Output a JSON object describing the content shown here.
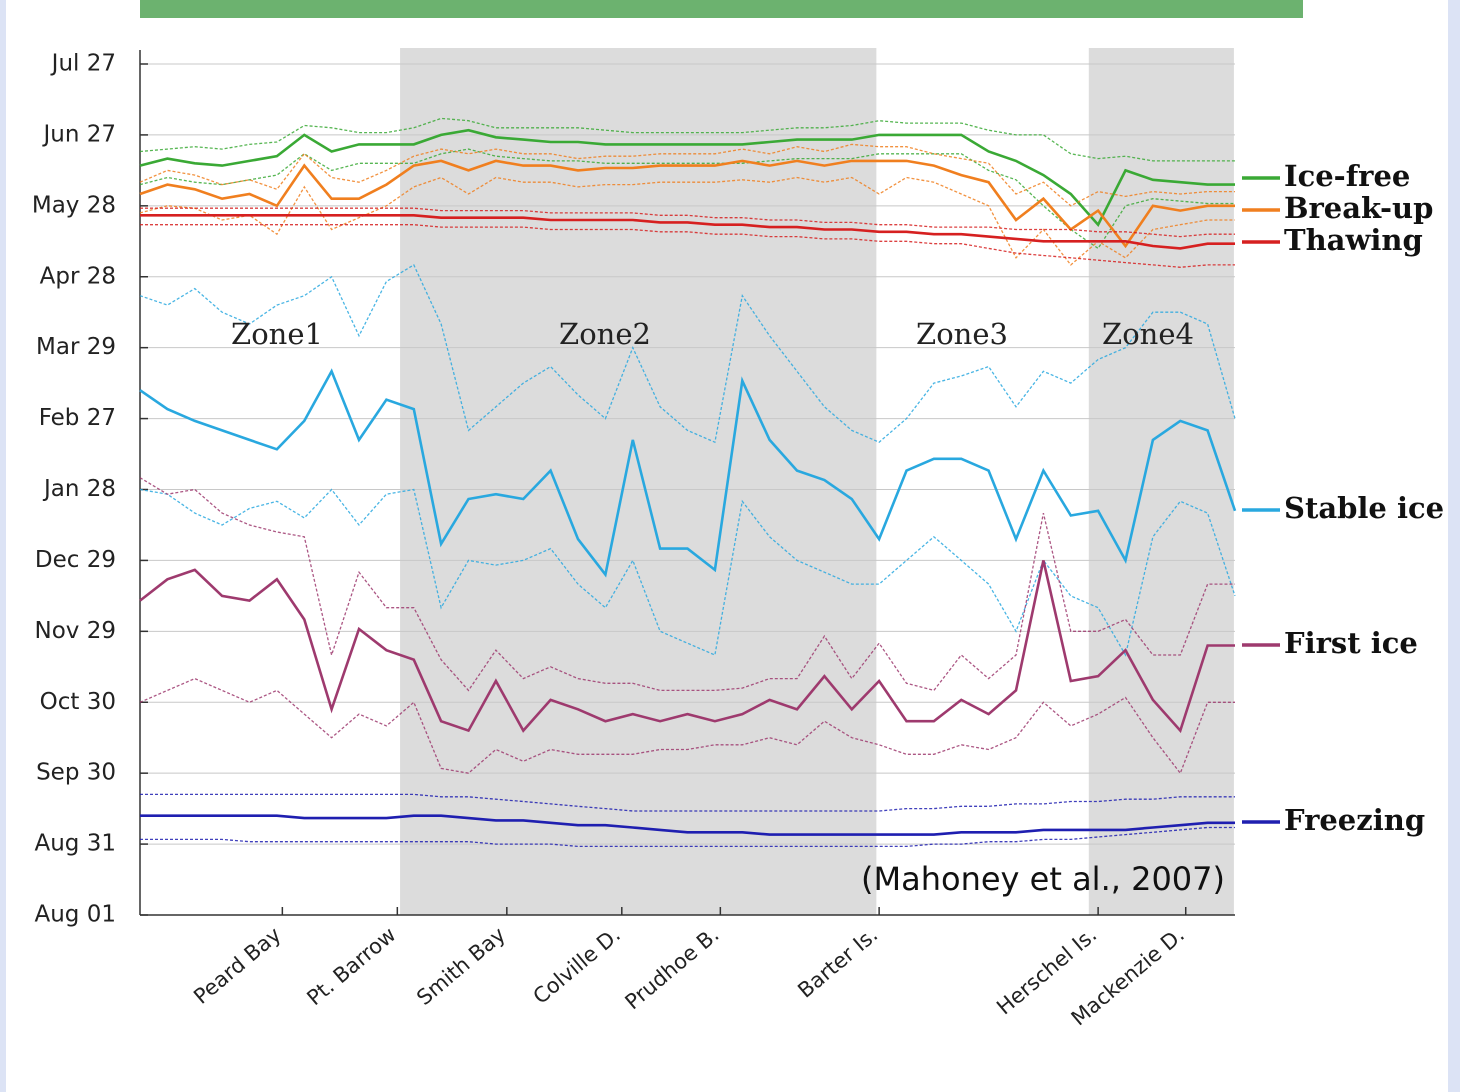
{
  "chart_data": {
    "type": "line",
    "annotation": "(Mahoney et al., 2007)",
    "zones": [
      "Zone1",
      "Zone2",
      "Zone3",
      "Zone4"
    ],
    "shaded": [
      [
        4.75,
        13.45
      ],
      [
        17.33,
        19.98
      ]
    ],
    "x": [
      0,
      0.5,
      1,
      1.5,
      2,
      2.5,
      3,
      3.5,
      4,
      4.5,
      5,
      5.5,
      6,
      6.5,
      7,
      7.5,
      8,
      8.5,
      9,
      9.5,
      10,
      10.5,
      11,
      11.5,
      12,
      12.5,
      13,
      13.5,
      14,
      14.5,
      15,
      15.5,
      16,
      16.5,
      17,
      17.5,
      18,
      18.5,
      19,
      19.5,
      20
    ],
    "xlim": [
      0,
      20
    ],
    "xticks": [
      {
        "value": 2.6,
        "label": "Peard Bay"
      },
      {
        "value": 4.7,
        "label": "Pt. Barrow"
      },
      {
        "value": 6.7,
        "label": "Smith Bay"
      },
      {
        "value": 8.8,
        "label": "Colville D."
      },
      {
        "value": 10.6,
        "label": "Prudhoe B."
      },
      {
        "value": 13.5,
        "label": "Barter Is."
      },
      {
        "value": 17.5,
        "label": "Herschel Is."
      },
      {
        "value": 19.1,
        "label": "Mackenzie D."
      }
    ],
    "ylim": [
      0,
      360
    ],
    "yticks": [
      {
        "value": 0,
        "label": "Aug 01"
      },
      {
        "value": 30,
        "label": "Aug 31"
      },
      {
        "value": 60,
        "label": "Sep 30"
      },
      {
        "value": 90,
        "label": "Oct 30"
      },
      {
        "value": 120,
        "label": "Nov 29"
      },
      {
        "value": 150,
        "label": "Dec 29"
      },
      {
        "value": 180,
        "label": "Jan 28"
      },
      {
        "value": 210,
        "label": "Feb 27"
      },
      {
        "value": 240,
        "label": "Mar 29"
      },
      {
        "value": 270,
        "label": "Apr 28"
      },
      {
        "value": 300,
        "label": "May 28"
      },
      {
        "value": 330,
        "label": "Jun 27"
      },
      {
        "value": 360,
        "label": "Jul 27"
      }
    ],
    "grid": true,
    "series": [
      {
        "name": "Ice-free",
        "color": "#3aa935",
        "values": [
          317,
          320,
          318,
          317,
          319,
          321,
          330,
          323,
          326,
          326,
          326,
          330,
          332,
          329,
          328,
          327,
          327,
          326,
          326,
          326,
          326,
          326,
          326,
          327,
          328,
          328,
          328,
          330,
          330,
          330,
          330,
          323,
          319,
          313,
          305,
          292,
          315,
          311,
          310,
          309,
          309
        ],
        "upper": [
          323,
          324,
          325,
          324,
          326,
          327,
          334,
          333,
          331,
          331,
          333,
          337,
          336,
          333,
          333,
          333,
          333,
          332,
          331,
          331,
          331,
          331,
          331,
          332,
          333,
          333,
          334,
          336,
          335,
          335,
          335,
          332,
          330,
          330,
          322,
          320,
          321,
          319,
          319,
          319,
          319
        ],
        "lower": [
          309,
          312,
          310,
          309,
          311,
          313,
          322,
          315,
          318,
          318,
          318,
          322,
          324,
          321,
          320,
          319,
          319,
          318,
          318,
          318,
          318,
          318,
          318,
          319,
          320,
          320,
          320,
          322,
          322,
          322,
          322,
          315,
          311,
          300,
          290,
          282,
          300,
          303,
          302,
          301,
          301
        ]
      },
      {
        "name": "Break-up",
        "color": "#f07f1f",
        "values": [
          305,
          309,
          307,
          303,
          305,
          300,
          317,
          303,
          303,
          309,
          317,
          319,
          315,
          319,
          317,
          317,
          315,
          316,
          316,
          317,
          317,
          317,
          319,
          317,
          319,
          317,
          319,
          319,
          319,
          317,
          313,
          310,
          294,
          303,
          290,
          298,
          283,
          300,
          298,
          300,
          300
        ],
        "upper": [
          310,
          315,
          313,
          309,
          311,
          307,
          322,
          312,
          310,
          315,
          321,
          324,
          322,
          324,
          322,
          322,
          320,
          321,
          321,
          322,
          322,
          322,
          324,
          322,
          325,
          323,
          326,
          325,
          325,
          322,
          320,
          318,
          305,
          310,
          300,
          306,
          304,
          306,
          305,
          306,
          306
        ],
        "lower": [
          297,
          300,
          299,
          294,
          296,
          288,
          308,
          290,
          295,
          300,
          308,
          312,
          305,
          312,
          310,
          310,
          308,
          309,
          309,
          310,
          310,
          310,
          311,
          310,
          312,
          310,
          312,
          305,
          312,
          310,
          305,
          300,
          278,
          290,
          275,
          285,
          278,
          290,
          292,
          294,
          294
        ]
      },
      {
        "name": "Thawing",
        "color": "#d62020",
        "values": [
          296,
          296,
          296,
          296,
          296,
          296,
          296,
          296,
          296,
          296,
          296,
          295,
          295,
          295,
          295,
          294,
          294,
          294,
          294,
          293,
          293,
          292,
          292,
          291,
          291,
          290,
          290,
          289,
          289,
          288,
          288,
          287,
          286,
          285,
          285,
          285,
          285,
          283,
          282,
          284,
          284
        ],
        "upper": [
          299,
          299,
          299,
          299,
          299,
          299,
          299,
          299,
          299,
          299,
          299,
          298,
          298,
          298,
          298,
          297,
          297,
          297,
          297,
          296,
          296,
          295,
          295,
          294,
          294,
          293,
          293,
          292,
          292,
          291,
          291,
          291,
          290,
          290,
          290,
          289,
          289,
          288,
          287,
          288,
          288
        ],
        "lower": [
          292,
          292,
          292,
          292,
          292,
          292,
          292,
          292,
          292,
          292,
          292,
          291,
          291,
          291,
          291,
          290,
          290,
          290,
          290,
          289,
          289,
          288,
          288,
          287,
          287,
          286,
          286,
          285,
          285,
          284,
          284,
          282,
          280,
          279,
          278,
          277,
          276,
          275,
          274,
          275,
          275
        ]
      },
      {
        "name": "Stable ice",
        "color": "#29a8df",
        "values": [
          222,
          214,
          209,
          205,
          201,
          197,
          209,
          230,
          201,
          218,
          214,
          157,
          176,
          178,
          176,
          188,
          159,
          144,
          201,
          155,
          155,
          146,
          226,
          201,
          188,
          184,
          176,
          159,
          188,
          193,
          193,
          188,
          159,
          188,
          169,
          171,
          150,
          201,
          209,
          205,
          171
        ],
        "upper": [
          262,
          258,
          265,
          255,
          250,
          258,
          262,
          270,
          245,
          268,
          275,
          250,
          205,
          215,
          225,
          232,
          220,
          210,
          240,
          215,
          205,
          200,
          262,
          245,
          230,
          215,
          205,
          200,
          210,
          225,
          228,
          232,
          215,
          230,
          225,
          235,
          240,
          255,
          255,
          250,
          210
        ],
        "lower": [
          180,
          178,
          170,
          165,
          172,
          175,
          168,
          180,
          165,
          178,
          180,
          130,
          150,
          148,
          150,
          155,
          140,
          130,
          150,
          120,
          115,
          110,
          175,
          160,
          150,
          145,
          140,
          140,
          150,
          160,
          150,
          140,
          120,
          150,
          135,
          130,
          110,
          160,
          175,
          170,
          135
        ]
      },
      {
        "name": "First ice",
        "color": "#9e3a6e",
        "values": [
          133,
          142,
          146,
          135,
          133,
          142,
          125,
          87,
          121,
          112,
          108,
          82,
          78,
          99,
          78,
          91,
          87,
          82,
          85,
          82,
          85,
          82,
          85,
          91,
          87,
          101,
          87,
          99,
          82,
          82,
          91,
          85,
          95,
          150,
          99,
          101,
          112,
          91,
          78,
          114,
          114
        ],
        "upper": [
          185,
          178,
          180,
          170,
          165,
          162,
          160,
          110,
          145,
          130,
          130,
          108,
          95,
          112,
          100,
          105,
          100,
          98,
          98,
          95,
          95,
          95,
          96,
          100,
          100,
          118,
          100,
          115,
          98,
          95,
          110,
          100,
          110,
          170,
          120,
          120,
          125,
          110,
          110,
          140,
          140
        ],
        "lower": [
          90,
          95,
          100,
          95,
          90,
          95,
          85,
          75,
          85,
          80,
          90,
          62,
          60,
          70,
          65,
          70,
          68,
          68,
          68,
          70,
          70,
          72,
          72,
          75,
          72,
          82,
          75,
          72,
          68,
          68,
          72,
          70,
          75,
          90,
          80,
          85,
          92,
          75,
          60,
          90,
          90
        ]
      },
      {
        "name": "Freezing",
        "color": "#1f1fb0",
        "values": [
          42,
          42,
          42,
          42,
          42,
          42,
          41,
          41,
          41,
          41,
          42,
          42,
          41,
          40,
          40,
          39,
          38,
          38,
          37,
          36,
          35,
          35,
          35,
          34,
          34,
          34,
          34,
          34,
          34,
          34,
          35,
          35,
          35,
          36,
          36,
          36,
          36,
          37,
          38,
          39,
          39
        ],
        "upper": [
          51,
          51,
          51,
          51,
          51,
          51,
          51,
          51,
          51,
          51,
          51,
          50,
          50,
          49,
          48,
          47,
          46,
          45,
          44,
          44,
          44,
          44,
          44,
          44,
          44,
          44,
          44,
          44,
          45,
          45,
          46,
          46,
          47,
          47,
          48,
          48,
          49,
          49,
          50,
          50,
          50
        ],
        "lower": [
          32,
          32,
          32,
          32,
          31,
          31,
          31,
          31,
          31,
          31,
          31,
          31,
          31,
          30,
          30,
          30,
          29,
          29,
          29,
          29,
          29,
          29,
          29,
          29,
          29,
          29,
          29,
          29,
          29,
          30,
          30,
          31,
          31,
          32,
          32,
          33,
          34,
          35,
          36,
          37,
          37
        ]
      }
    ]
  }
}
